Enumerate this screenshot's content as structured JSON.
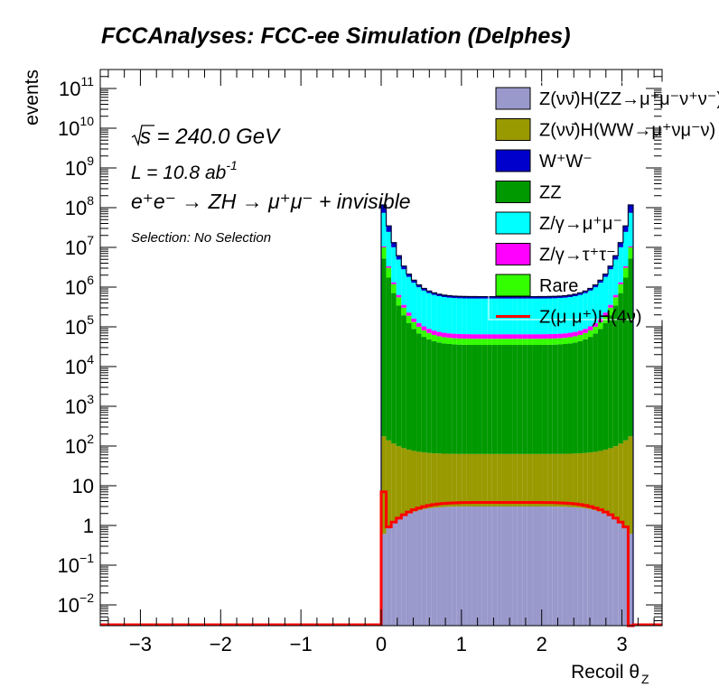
{
  "chart_data": {
    "type": "bar",
    "title": "FCCAnalyses: FCC-ee Simulation (Delphes)",
    "xlabel": "Recoil θ",
    "xlabel_sub": "Z",
    "ylabel": "events",
    "xlim": [
      -3.5,
      3.5
    ],
    "ylim": [
      0.003,
      300000000000.0
    ],
    "yscale": "log",
    "x_ticks": [
      -3,
      -2,
      -1,
      0,
      1,
      2,
      3
    ],
    "x_tick_labels": [
      "−3",
      "−2",
      "−1",
      "0",
      "1",
      "2",
      "3"
    ],
    "y_ticks": [
      {
        "v": 0.01,
        "base": "10",
        "exp": "−2"
      },
      {
        "v": 0.1,
        "base": "10",
        "exp": "−1"
      },
      {
        "v": 1,
        "base": "1",
        "exp": ""
      },
      {
        "v": 10,
        "base": "10",
        "exp": ""
      },
      {
        "v": 100,
        "base": "10",
        "exp": "2"
      },
      {
        "v": 1000,
        "base": "10",
        "exp": "3"
      },
      {
        "v": 10000,
        "base": "10",
        "exp": "4"
      },
      {
        "v": 100000,
        "base": "10",
        "exp": "5"
      },
      {
        "v": 1000000,
        "base": "10",
        "exp": "6"
      },
      {
        "v": 10000000,
        "base": "10",
        "exp": "7"
      },
      {
        "v": 100000000,
        "base": "10",
        "exp": "8"
      },
      {
        "v": 1000000000,
        "base": "10",
        "exp": "9"
      },
      {
        "v": 10000000000,
        "base": "10",
        "exp": "10"
      },
      {
        "v": 100000000000,
        "base": "10",
        "exp": "11"
      }
    ],
    "bin_edges_start": 0.0,
    "bin_width": 0.0628,
    "stacked_series": [
      {
        "name": "Z(νν̄)H(ZZ→μ⁺μ⁻ν⁺ν⁻)",
        "color": "#9999cc",
        "shape": "hump",
        "edge": 0.5,
        "mid": 3.0
      },
      {
        "name": "Z(νν̄)H(WW→μ⁺νμ⁻ν)",
        "color": "#999900",
        "shape": "hump",
        "edge": 200,
        "mid": 60
      },
      {
        "name": "ZZ",
        "color": "#009900",
        "shape": "hump",
        "edge": 10000000.0,
        "mid": 35000
      },
      {
        "name": "Rare",
        "color": "#33ff00",
        "shape": "hump",
        "edge": 10000000.0,
        "mid": 15000
      },
      {
        "name": "Z/γ→τ⁺τ⁻",
        "color": "#ff00ff",
        "shape": "hump",
        "edge": 1000000.0,
        "mid": 15000
      },
      {
        "name": "Z/γ→μ⁺μ⁻",
        "color": "#00ffff",
        "shape": "hump",
        "edge": 120000000.0,
        "mid": 450000
      },
      {
        "name": "W⁺W⁻",
        "color": "#0000cc",
        "shape": "hump",
        "edge": 100000000.0,
        "mid": 60000
      }
    ],
    "signal": {
      "name": "Z(μ μ⁺)H(4ν)",
      "color": "#ff0000",
      "first_bin": 7.0,
      "edge": 0.55,
      "mid": 3.8
    },
    "legend": [
      {
        "label": "Z(νν̄)H(ZZ→μ⁺μ⁻ν⁺ν⁻)",
        "color": "#9999cc",
        "kind": "box"
      },
      {
        "label": "Z(νν̄)H(WW→μ⁺νμ⁻ν)",
        "color": "#999900",
        "kind": "box"
      },
      {
        "label": "W⁺W⁻",
        "color": "#0000cc",
        "kind": "box"
      },
      {
        "label": "ZZ",
        "color": "#009900",
        "kind": "box"
      },
      {
        "label": "Z/γ→μ⁺μ⁻",
        "color": "#00ffff",
        "kind": "box"
      },
      {
        "label": "Z/γ→τ⁺τ⁻",
        "color": "#ff00ff",
        "kind": "box"
      },
      {
        "label": "Rare",
        "color": "#33ff00",
        "kind": "box"
      },
      {
        "label": "Z(μ μ⁺)H(4ν)",
        "color": "#ff0000",
        "kind": "line"
      }
    ],
    "legend_position": "top-right",
    "annotations": {
      "sqrt_s": "s = 240.0 GeV",
      "lumi": "L = 10.8 ab",
      "lumi_exp": "-1",
      "process": "e⁺e⁻ → ZH → μ⁺μ⁻ + invisible",
      "selection": "Selection: No Selection"
    }
  }
}
